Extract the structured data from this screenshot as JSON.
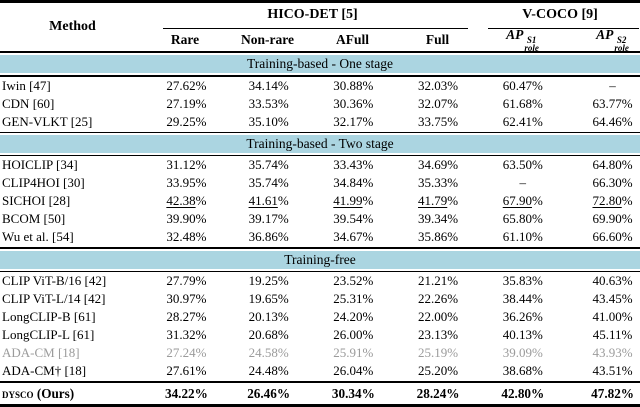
{
  "paper_table": {
    "colors": {
      "band": "#abd5e1",
      "gray_text": "#9b9b9b",
      "rule": "#000000"
    },
    "method_header": "Method",
    "groups": [
      {
        "label": "HICO-DET [5]"
      },
      {
        "label": "V-COCO [9]"
      }
    ],
    "subheaders": [
      "Rare",
      "Non-rare",
      "AFull",
      "Full"
    ],
    "ap_headers": [
      {
        "base": "AP",
        "sup": "S1",
        "sub": "role"
      },
      {
        "base": "AP",
        "sup": "S2",
        "sub": "role"
      }
    ],
    "sections": [
      {
        "title": "Training-based - One stage",
        "rows": [
          {
            "method": "Iwin [47]",
            "values": [
              "27.62%",
              "34.14%",
              "30.88%",
              "32.03%",
              "60.47%",
              "–"
            ]
          },
          {
            "method": "CDN [60]",
            "values": [
              "27.19%",
              "33.53%",
              "30.36%",
              "32.07%",
              "61.68%",
              "63.77%"
            ]
          },
          {
            "method": "GEN-VLKT [25]",
            "values": [
              "29.25%",
              "35.10%",
              "32.17%",
              "33.75%",
              "62.41%",
              "64.46%"
            ]
          }
        ]
      },
      {
        "title": "Training-based - Two stage",
        "rows": [
          {
            "method": "HOICLIP [34]",
            "values": [
              "31.12%",
              "35.74%",
              "33.43%",
              "34.69%",
              "63.50%",
              "64.80%"
            ]
          },
          {
            "method": "CLIP4HOI [30]",
            "values": [
              "33.95%",
              "35.74%",
              "34.84%",
              "35.33%",
              "–",
              "66.30%"
            ]
          },
          {
            "method": "SICHOI [28]",
            "values": [
              "42.38%",
              "41.61%",
              "41.99%",
              "41.79%",
              "67.90%",
              "72.80%"
            ],
            "underline": true
          },
          {
            "method": "BCOM [50]",
            "values": [
              "39.90%",
              "39.17%",
              "39.54%",
              "39.34%",
              "65.80%",
              "69.90%"
            ]
          },
          {
            "method": "Wu et al. [54]",
            "values": [
              "32.48%",
              "36.86%",
              "34.67%",
              "35.86%",
              "61.10%",
              "66.60%"
            ]
          }
        ]
      },
      {
        "title": "Training-free",
        "rows": [
          {
            "method": "CLIP ViT-B/16 [42]",
            "values": [
              "27.79%",
              "19.25%",
              "23.52%",
              "21.21%",
              "35.83%",
              "40.63%"
            ]
          },
          {
            "method": "CLIP ViT-L/14 [42]",
            "values": [
              "30.97%",
              "19.65%",
              "25.31%",
              "22.26%",
              "38.44%",
              "43.45%"
            ]
          },
          {
            "method": "LongCLIP-B [61]",
            "values": [
              "28.27%",
              "20.13%",
              "24.20%",
              "22.00%",
              "36.26%",
              "41.00%"
            ]
          },
          {
            "method": "LongCLIP-L [61]",
            "values": [
              "31.32%",
              "20.68%",
              "26.00%",
              "23.13%",
              "40.13%",
              "45.11%"
            ]
          },
          {
            "method": "ADA-CM [18]",
            "values": [
              "27.24%",
              "24.58%",
              "25.91%",
              "25.19%",
              "39.09%",
              "43.93%"
            ],
            "gray": true
          },
          {
            "method": "ADA-CM† [18]",
            "values": [
              "27.61%",
              "24.48%",
              "26.04%",
              "25.20%",
              "38.68%",
              "43.51%"
            ]
          }
        ]
      }
    ],
    "final_row": {
      "method_smallcaps": "dysco",
      "method_suffix": " (Ours)",
      "values": [
        "34.22%",
        "26.46%",
        "30.34%",
        "28.24%",
        "42.80%",
        "47.82%"
      ],
      "bold": true
    }
  }
}
